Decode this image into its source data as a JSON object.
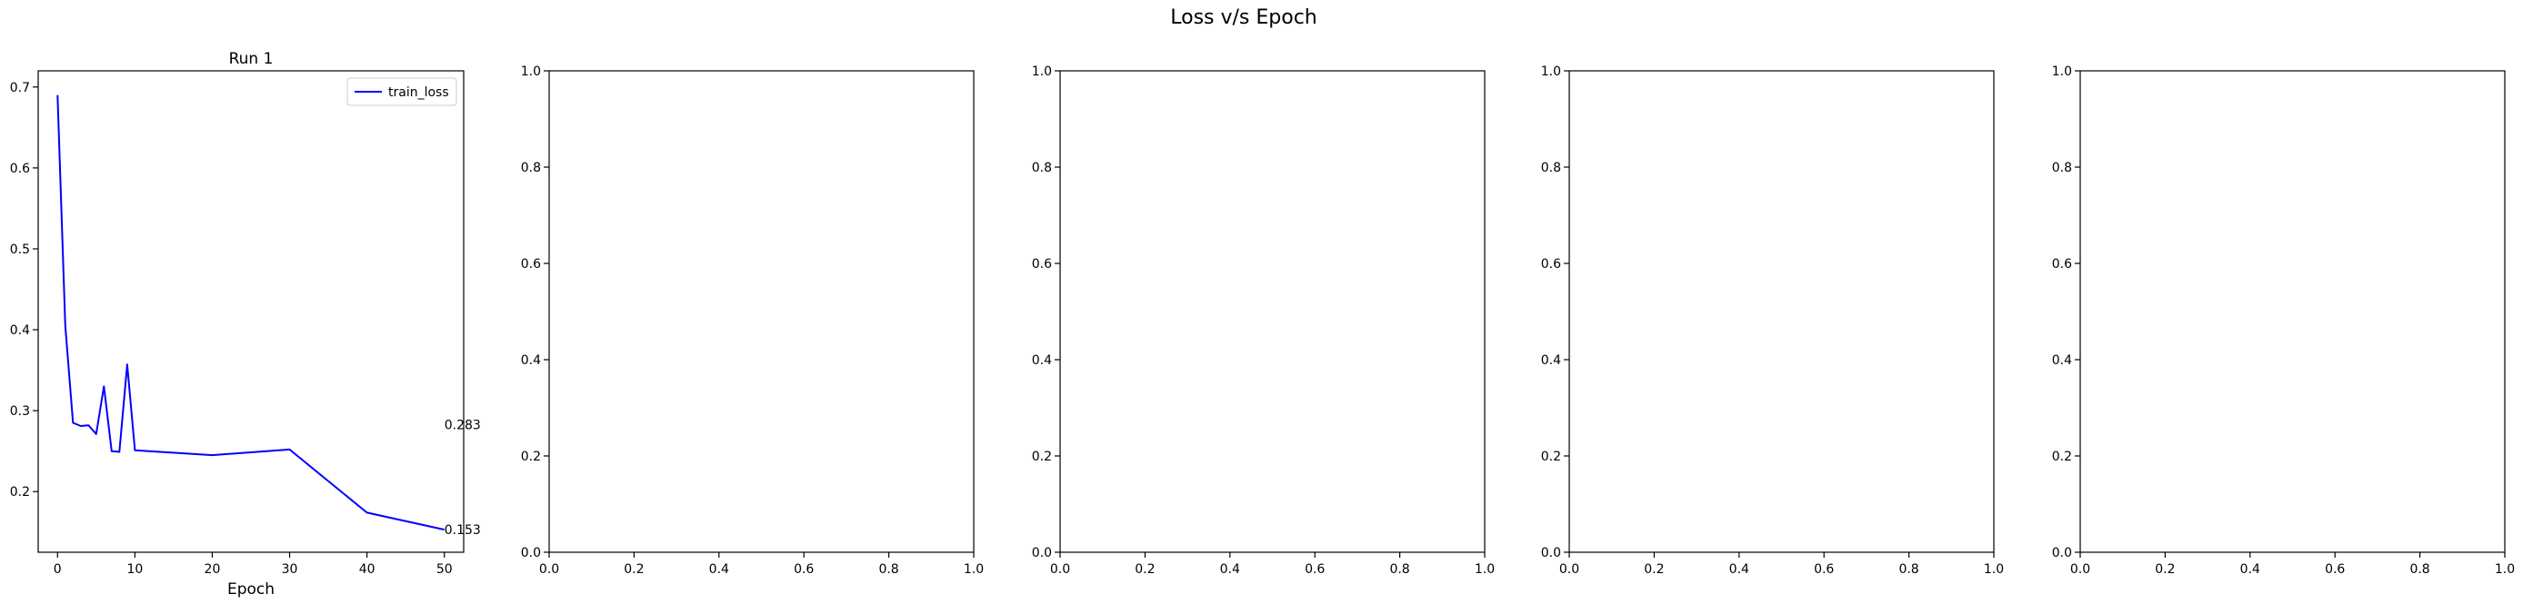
{
  "figure": {
    "title": "Loss v/s Epoch"
  },
  "chart_data": [
    {
      "type": "line",
      "title": "Run 1",
      "xlabel": "Epoch",
      "ylabel": "",
      "xlim": [
        -2.5,
        52.5
      ],
      "ylim": [
        0.125,
        0.72
      ],
      "xticks": [
        0,
        10,
        20,
        30,
        40,
        50
      ],
      "yticks": [
        0.2,
        0.3,
        0.4,
        0.5,
        0.6,
        0.7
      ],
      "legend": "top-right",
      "grid": false,
      "series": [
        {
          "name": "train_loss",
          "color": "#0000ff",
          "x": [
            0,
            1,
            2,
            3,
            4,
            5,
            6,
            7,
            8,
            9,
            10,
            20,
            30,
            40,
            50
          ],
          "y": [
            0.69,
            0.405,
            0.285,
            0.281,
            0.282,
            0.271,
            0.33,
            0.25,
            0.249,
            0.357,
            0.251,
            0.245,
            0.252,
            0.174,
            0.153
          ]
        }
      ],
      "annotations": [
        {
          "text": "0.283",
          "x": 50,
          "y": 0.283
        },
        {
          "text": "0.153",
          "x": 50,
          "y": 0.153
        }
      ]
    },
    {
      "type": "line",
      "title": "",
      "xlim": [
        0,
        1
      ],
      "ylim": [
        0,
        1
      ],
      "xticks": [
        0.0,
        0.2,
        0.4,
        0.6,
        0.8,
        1.0
      ],
      "yticks": [
        0.0,
        0.2,
        0.4,
        0.6,
        0.8,
        1.0
      ],
      "series": []
    },
    {
      "type": "line",
      "title": "",
      "xlim": [
        0,
        1
      ],
      "ylim": [
        0,
        1
      ],
      "xticks": [
        0.0,
        0.2,
        0.4,
        0.6,
        0.8,
        1.0
      ],
      "yticks": [
        0.0,
        0.2,
        0.4,
        0.6,
        0.8,
        1.0
      ],
      "series": []
    },
    {
      "type": "line",
      "title": "",
      "xlim": [
        0,
        1
      ],
      "ylim": [
        0,
        1
      ],
      "xticks": [
        0.0,
        0.2,
        0.4,
        0.6,
        0.8,
        1.0
      ],
      "yticks": [
        0.0,
        0.2,
        0.4,
        0.6,
        0.8,
        1.0
      ],
      "series": []
    },
    {
      "type": "line",
      "title": "",
      "xlim": [
        0,
        1
      ],
      "ylim": [
        0,
        1
      ],
      "xticks": [
        0.0,
        0.2,
        0.4,
        0.6,
        0.8,
        1.0
      ],
      "yticks": [
        0.0,
        0.2,
        0.4,
        0.6,
        0.8,
        1.0
      ],
      "series": []
    }
  ]
}
